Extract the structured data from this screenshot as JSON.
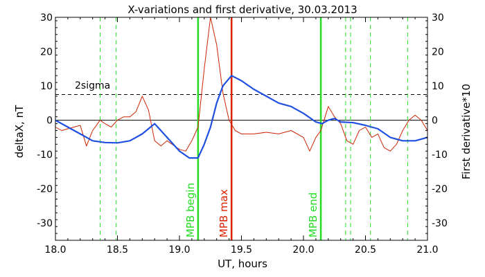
{
  "chart_data": {
    "type": "line",
    "title": "X-variations and first derivative, 30.03.2013",
    "xlabel": "UT, hours",
    "ylabel_left": "deltaX, nT",
    "ylabel_right": "First derivative*10",
    "xlim": [
      18.0,
      21.0
    ],
    "ylim": [
      -35,
      30
    ],
    "x_ticks": [
      "18.0",
      "18.5",
      "19.0",
      "19.5",
      "20.0",
      "20.5",
      "21.0"
    ],
    "x_tick_values": [
      18.0,
      18.5,
      19.0,
      19.5,
      20.0,
      20.5,
      21.0
    ],
    "y_ticks": [
      "30",
      "20",
      "10",
      "0",
      "-10",
      "-20",
      "-30"
    ],
    "y_tick_values": [
      30,
      20,
      10,
      0,
      -10,
      -20,
      -30
    ],
    "colors": {
      "deltaX": "#1f4fe0",
      "derivative": "#cc2200",
      "boundary": "#22dd22",
      "mpb_max": "#dd2200",
      "axis": "#000000",
      "left_label": "#1f4fe0",
      "right_label": "#dd3311"
    },
    "threshold": {
      "label": "2sigma",
      "value": 7.5
    },
    "zero_line": 0,
    "vertical_lines": [
      {
        "label": "MPB begin",
        "x": 19.15,
        "style": "solid",
        "color": "#22dd22"
      },
      {
        "label": "MPB max",
        "x": 19.42,
        "style": "solid",
        "color": "#dd2200"
      },
      {
        "label": "MPB end",
        "x": 20.14,
        "style": "solid",
        "color": "#22dd22"
      },
      {
        "label": "",
        "x": 18.36,
        "style": "dashed",
        "color": "#22dd22"
      },
      {
        "label": "",
        "x": 18.49,
        "style": "dashed",
        "color": "#22dd22"
      },
      {
        "label": "",
        "x": 20.34,
        "style": "dashed",
        "color": "#22dd22"
      },
      {
        "label": "",
        "x": 20.38,
        "style": "dashed",
        "color": "#22dd22"
      },
      {
        "label": "",
        "x": 20.54,
        "style": "dashed",
        "color": "#22dd22"
      },
      {
        "label": "",
        "x": 20.84,
        "style": "dashed",
        "color": "#22dd22"
      }
    ],
    "series": [
      {
        "key": "deltaX",
        "x": [
          18.0,
          18.1,
          18.2,
          18.3,
          18.4,
          18.5,
          18.6,
          18.7,
          18.8,
          18.9,
          19.0,
          19.08,
          19.15,
          19.2,
          19.25,
          19.3,
          19.35,
          19.42,
          19.5,
          19.6,
          19.7,
          19.8,
          19.9,
          20.0,
          20.1,
          20.15,
          20.2,
          20.25,
          20.3,
          20.4,
          20.5,
          20.6,
          20.7,
          20.8,
          20.9,
          21.0
        ],
        "y": [
          0,
          -2,
          -4,
          -6,
          -6.5,
          -6.6,
          -6,
          -4,
          -1,
          -5,
          -9,
          -11,
          -11,
          -7,
          -2,
          5,
          10,
          13,
          11.5,
          9,
          7,
          5,
          4,
          2,
          -0.5,
          -1,
          0,
          0.5,
          -0.5,
          -0.7,
          -1.5,
          -2.5,
          -5,
          -6,
          -6,
          -5
        ]
      },
      {
        "key": "derivative",
        "x": [
          18.0,
          18.05,
          18.1,
          18.15,
          18.2,
          18.25,
          18.3,
          18.36,
          18.4,
          18.45,
          18.5,
          18.55,
          18.6,
          18.65,
          18.7,
          18.75,
          18.8,
          18.85,
          18.9,
          19.0,
          19.05,
          19.1,
          19.15,
          19.2,
          19.25,
          19.3,
          19.35,
          19.4,
          19.45,
          19.5,
          19.6,
          19.7,
          19.8,
          19.9,
          20.0,
          20.05,
          20.1,
          20.14,
          20.2,
          20.25,
          20.3,
          20.35,
          20.4,
          20.45,
          20.5,
          20.55,
          20.6,
          20.65,
          20.7,
          20.75,
          20.8,
          20.85,
          20.9,
          20.95,
          21.0
        ],
        "y": [
          -2,
          -3,
          -2.5,
          -2,
          -1.5,
          -7.5,
          -3,
          0,
          -1,
          -2,
          0,
          1,
          1,
          2.5,
          7,
          3,
          -6,
          -7.5,
          -6,
          -8.5,
          -9,
          -6,
          -2,
          15,
          30,
          22,
          8,
          0,
          -3,
          -4,
          -4,
          -3.5,
          -4,
          -3,
          -5,
          -9,
          -5,
          -3,
          4,
          1,
          -1,
          -6,
          -7,
          -3,
          -2,
          -5,
          -4,
          -8,
          -9,
          -7,
          -3,
          0,
          1.5,
          0,
          -3
        ]
      }
    ],
    "grid": false,
    "legend": "none"
  }
}
